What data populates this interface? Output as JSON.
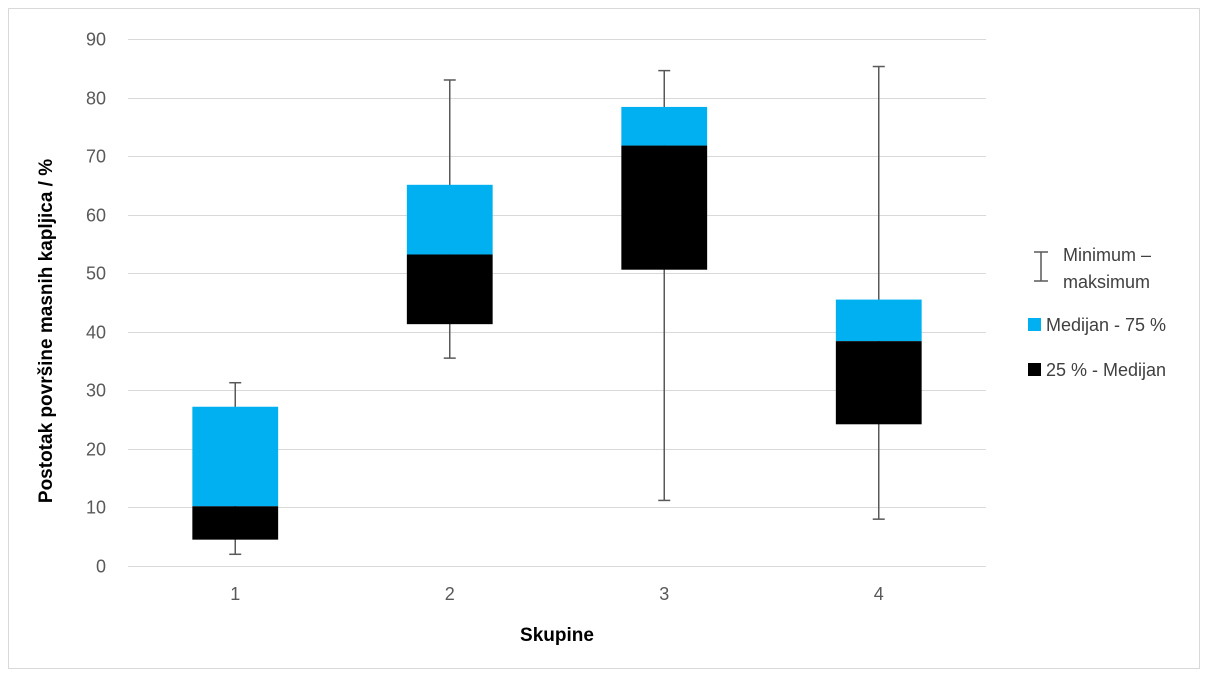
{
  "chart_data": {
    "type": "box",
    "title": "",
    "xlabel": "Skupine",
    "ylabel": "Postotak površine masnih kapljica / %",
    "ylim": [
      0,
      90
    ],
    "yticks": [
      0,
      10,
      20,
      30,
      40,
      50,
      60,
      70,
      80,
      90
    ],
    "grid": true,
    "legend_position": "right",
    "categories": [
      "1",
      "2",
      "3",
      "4"
    ],
    "boxes": [
      {
        "category": "1",
        "min": 2,
        "q1": 4.5,
        "median": 10.2,
        "q3": 27.2,
        "max": 31.3
      },
      {
        "category": "2",
        "min": 35.5,
        "q1": 41.3,
        "median": 53.2,
        "q3": 65.1,
        "max": 83
      },
      {
        "category": "3",
        "min": 11.2,
        "q1": 50.6,
        "median": 71.8,
        "q3": 78.4,
        "max": 84.6
      },
      {
        "category": "4",
        "min": 8,
        "q1": 24.2,
        "median": 38.4,
        "q3": 45.5,
        "max": 85.3
      }
    ],
    "series": [
      {
        "name": "Minimum – maksimum",
        "color": "#595959",
        "line1": "Minimum –",
        "line2": "maksimum"
      },
      {
        "name": "Medijan - 75 %",
        "color": "#00b0f0"
      },
      {
        "name": "25 % - Medijan",
        "color": "#000000"
      }
    ]
  }
}
